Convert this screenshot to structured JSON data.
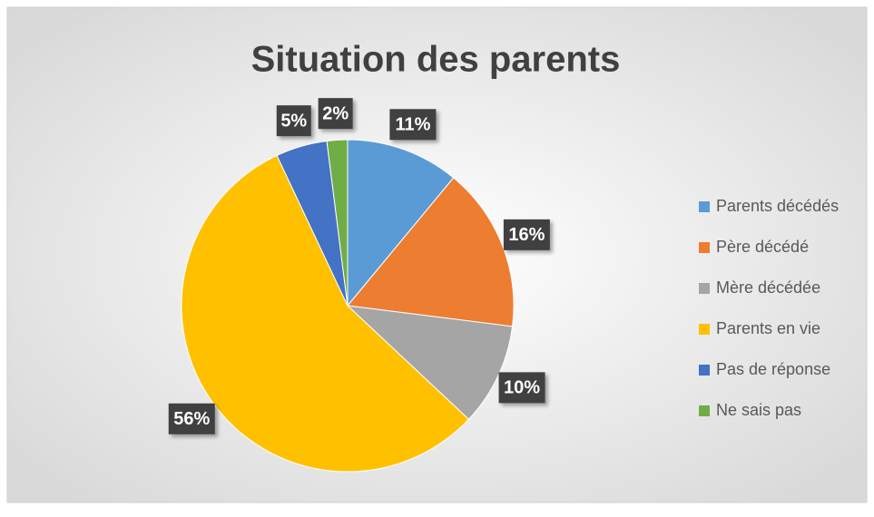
{
  "chart_data": {
    "type": "pie",
    "title": "Situation des parents",
    "categories": [
      "Parents décédés",
      "Père décédé",
      "Mère décédée",
      "Parents en vie",
      "Pas de réponse",
      "Ne sais pas"
    ],
    "values": [
      11,
      16,
      10,
      56,
      5,
      2
    ],
    "value_labels": [
      "11%",
      "16%",
      "10%",
      "56%",
      "5%",
      "2%"
    ],
    "colors": [
      "#5b9bd5",
      "#ed7d31",
      "#a5a5a5",
      "#ffc000",
      "#4472c4",
      "#70ad47"
    ],
    "legend": "right"
  }
}
